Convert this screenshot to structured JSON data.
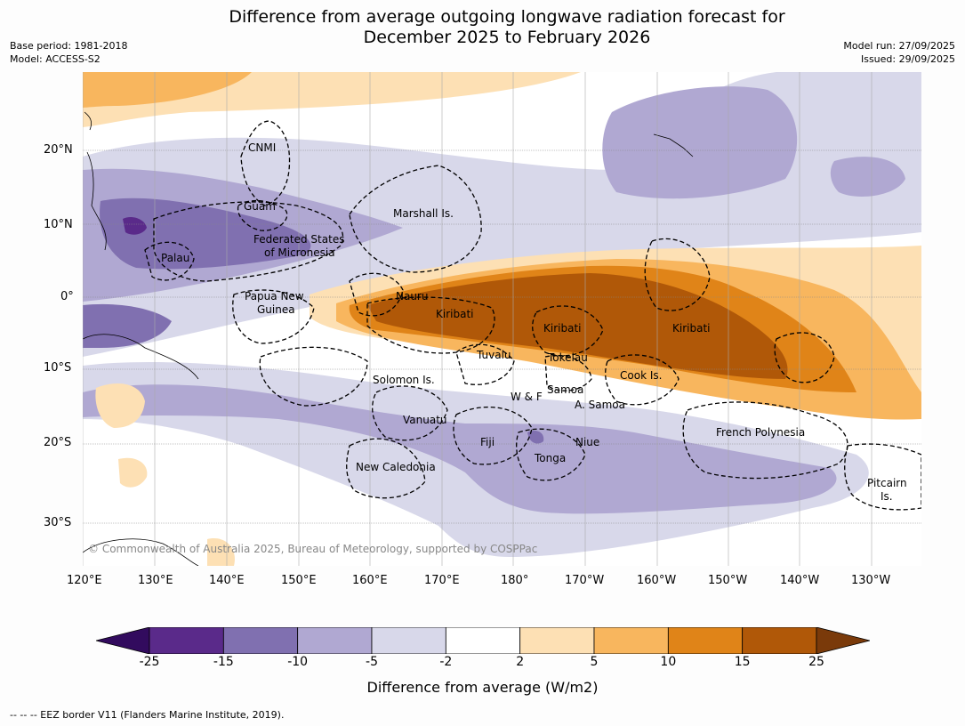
{
  "title": {
    "line1": "Difference from average outgoing longwave radiation forecast for",
    "line2": "December 2025 to February 2026"
  },
  "meta": {
    "base_period": "Base period: 1981-2018",
    "model": "Model: ACCESS-S2",
    "model_run": "Model run: 27/09/2025",
    "issued": "Issued: 29/09/2025"
  },
  "map": {
    "lat_labels": [
      "20°N",
      "10°N",
      "0°",
      "10°S",
      "20°S",
      "30°S"
    ],
    "lon_labels": [
      "120°E",
      "130°E",
      "140°E",
      "150°E",
      "160°E",
      "170°E",
      "180°",
      "170°W",
      "160°W",
      "150°W",
      "140°W",
      "130°W"
    ],
    "places": {
      "cnmi": "CNMI",
      "guam": "Guam",
      "marshall": "Marshall Is.",
      "fsm1": "Federated States",
      "fsm2": "of Micronesia",
      "palau": "Palau",
      "png1": "Papua New",
      "png2": "Guinea",
      "nauru": "Nauru",
      "kiribati_w": "Kiribati",
      "kiribati_c": "Kiribati",
      "kiribati_e": "Kiribati",
      "tuvalu": "Tuvalu",
      "tokelau": "Tokelau",
      "cook": "Cook Is.",
      "solomon": "Solomon Is.",
      "wf": "W & F",
      "samoa": "Samoa",
      "asamoa": "A. Samoa",
      "vanuatu": "Vanuatu",
      "fiji": "Fiji",
      "niue": "Niue",
      "tonga": "Tonga",
      "newcal": "New Caledonia",
      "frpoly": "French Polynesia",
      "pitcairn1": "Pitcairn",
      "pitcairn2": "Is."
    },
    "copyright": "© Commonwealth of Australia 2025, Bureau of Meteorology, supported by COSPPac"
  },
  "colorbar": {
    "ticks": [
      "-25",
      "-15",
      "-10",
      "-5",
      "-2",
      "2",
      "5",
      "10",
      "15",
      "25"
    ],
    "colors": [
      "#320b5e",
      "#5a2a8a",
      "#8070b0",
      "#b0a8d2",
      "#d8d8ea",
      "#ffffff",
      "#fde0b4",
      "#f8b65e",
      "#e08418",
      "#b05808",
      "#7a3a0a"
    ],
    "label": "Difference from average (W/m2)"
  },
  "footer": "--  --  -- EEZ border V11 (Flanders Marine Institute, 2019)."
}
